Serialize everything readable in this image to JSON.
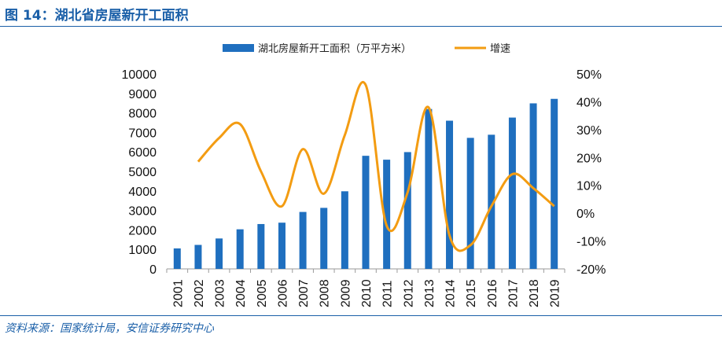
{
  "figure_title": "图 14：湖北省房屋新开工面积",
  "source": "资料来源：国家统计局，安信证券研究中心",
  "chart_data": {
    "type": "bar",
    "categories": [
      "2001",
      "2002",
      "2003",
      "2004",
      "2005",
      "2006",
      "2007",
      "2008",
      "2009",
      "2010",
      "2011",
      "2012",
      "2013",
      "2014",
      "2015",
      "2016",
      "2017",
      "2018",
      "2019"
    ],
    "series": [
      {
        "name": "湖北房屋新开工面积（万平方米）",
        "type": "bar",
        "axis": "left",
        "color": "#1f6fbf",
        "values": [
          1050,
          1230,
          1560,
          2030,
          2300,
          2370,
          2920,
          3130,
          3980,
          5800,
          5600,
          5990,
          8200,
          7600,
          6720,
          6880,
          7760,
          8490,
          8720
        ]
      },
      {
        "name": "增速",
        "type": "line",
        "axis": "right",
        "color": "#f39c12",
        "values": [
          null,
          18.5,
          27,
          32,
          15,
          2.5,
          23,
          7,
          28,
          46,
          -4.5,
          7.5,
          38,
          -8,
          -11.5,
          2.5,
          14,
          9,
          2.5
        ]
      }
    ],
    "y_left": {
      "ylim": [
        0,
        10000
      ],
      "ticks": [
        0,
        1000,
        2000,
        3000,
        4000,
        5000,
        6000,
        7000,
        8000,
        9000,
        10000
      ]
    },
    "y_right": {
      "ylim": [
        -20,
        50
      ],
      "ticks": [
        -20,
        -10,
        0,
        10,
        20,
        30,
        40,
        50
      ],
      "tick_labels": [
        "-20%",
        "-10%",
        "0%",
        "10%",
        "20%",
        "30%",
        "40%",
        "50%"
      ]
    },
    "legend_position": "top-center",
    "grid": false
  }
}
